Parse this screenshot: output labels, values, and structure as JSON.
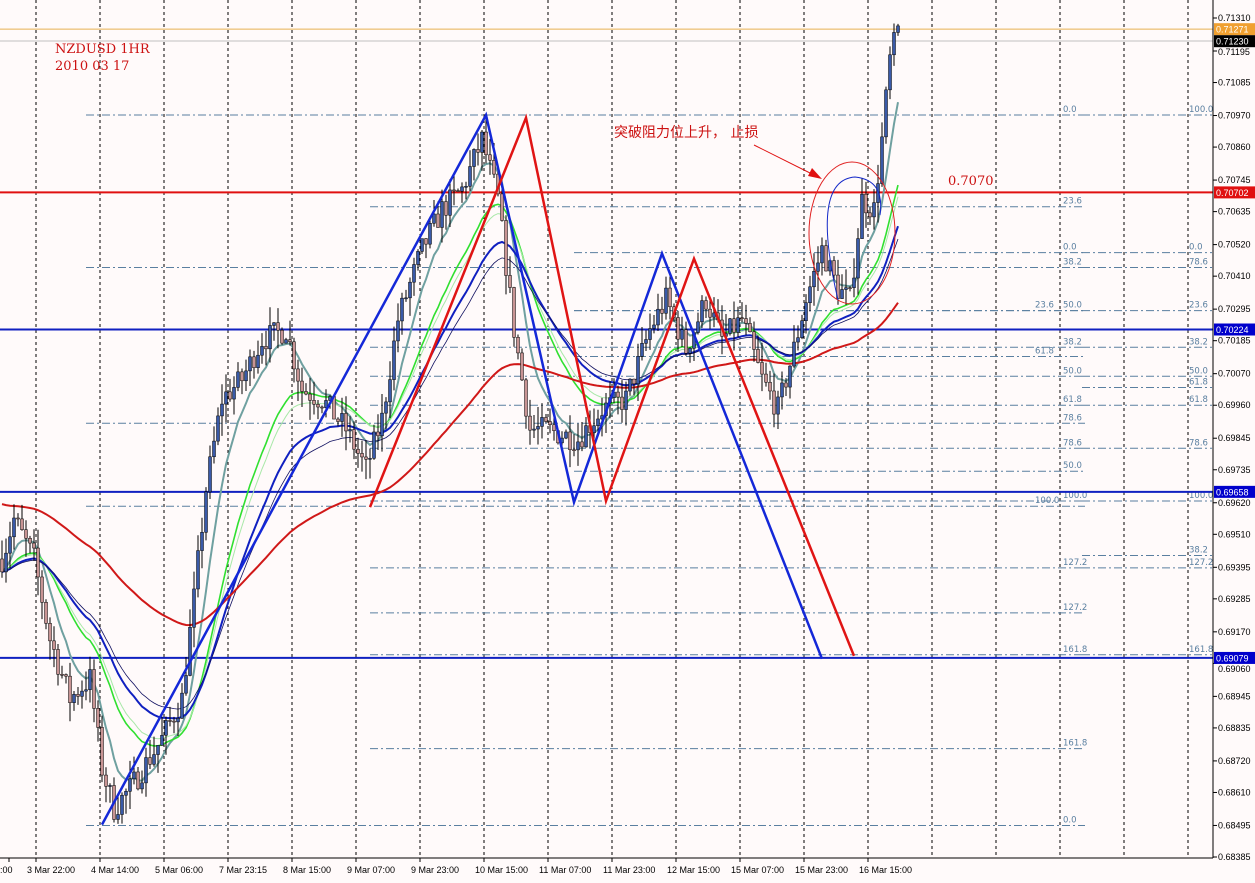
{
  "chart_data": {
    "type": "candlestick",
    "title": "NZDUSD 1HR",
    "subtitle": "2010 03 17",
    "annotation": "突破阻力位上升， 止损",
    "level_label": "0.7070",
    "price_axis": {
      "ylim": [
        0.68385,
        0.7131
      ],
      "ticks": [
        "0.71310",
        "0.71195",
        "0.71085",
        "0.70970",
        "0.70860",
        "0.70745",
        "0.70635",
        "0.70520",
        "0.70410",
        "0.70295",
        "0.70185",
        "0.70070",
        "0.69960",
        "0.69845",
        "0.69735",
        "0.69620",
        "0.69510",
        "0.69395",
        "0.69285",
        "0.69170",
        "0.69060",
        "0.68945",
        "0.68835",
        "0.68720",
        "0.68610",
        "0.68495",
        "0.68385"
      ]
    },
    "time_axis": {
      "ticks": [
        ":00",
        "3 Mar 22:00",
        "4 Mar 14:00",
        "5 Mar 06:00",
        "7 Mar 23:15",
        "8 Mar 15:00",
        "9 Mar 07:00",
        "9 Mar 23:00",
        "10 Mar 15:00",
        "11 Mar 07:00",
        "11 Mar 23:00",
        "12 Mar 15:00",
        "15 Mar 07:00",
        "15 Mar 23:00",
        "16 Mar 15:00"
      ]
    },
    "grid": true,
    "price_markers": [
      {
        "label": "0.71271",
        "price": 0.71271,
        "color": "#f0a030",
        "line": "#e8b050"
      },
      {
        "label": "0.71230",
        "price": 0.7123,
        "color": "#000000",
        "line": "#c0c0c0"
      },
      {
        "label": "0.70702",
        "price": 0.70702,
        "color": "#e01010",
        "line": "#e01010"
      },
      {
        "label": "0.70224",
        "price": 0.70224,
        "color": "#0000cc",
        "line": "#1020c0"
      },
      {
        "label": "0.69658",
        "price": 0.69658,
        "color": "#0000cc",
        "line": "#1020c0"
      },
      {
        "label": "0.69079",
        "price": 0.69079,
        "color": "#0000cc",
        "line": "#1020c0"
      }
    ],
    "close_path": [
      [
        0,
        0.69424
      ],
      [
        3,
        0.69563
      ],
      [
        8,
        0.69424
      ],
      [
        12,
        0.69145
      ],
      [
        17,
        0.68937
      ],
      [
        22,
        0.69006
      ],
      [
        25,
        0.68693
      ],
      [
        28,
        0.68554
      ],
      [
        32,
        0.68623
      ],
      [
        40,
        0.68797
      ],
      [
        45,
        0.68937
      ],
      [
        48,
        0.69285
      ],
      [
        51,
        0.69667
      ],
      [
        55,
        0.69981
      ],
      [
        60,
        0.7005
      ],
      [
        65,
        0.70189
      ],
      [
        71,
        0.70224
      ],
      [
        75,
        0.70015
      ],
      [
        80,
        0.69981
      ],
      [
        86,
        0.69876
      ],
      [
        91,
        0.69737
      ],
      [
        95,
        0.69911
      ],
      [
        99,
        0.70259
      ],
      [
        105,
        0.70503
      ],
      [
        110,
        0.70642
      ],
      [
        115,
        0.70711
      ],
      [
        120,
        0.70885
      ],
      [
        124,
        0.70677
      ],
      [
        128,
        0.70224
      ],
      [
        132,
        0.69876
      ],
      [
        136,
        0.69876
      ],
      [
        144,
        0.69841
      ],
      [
        150,
        0.69946
      ],
      [
        156,
        0.69981
      ],
      [
        162,
        0.70224
      ],
      [
        166,
        0.70329
      ],
      [
        171,
        0.70155
      ],
      [
        176,
        0.70329
      ],
      [
        180,
        0.70189
      ],
      [
        185,
        0.70259
      ],
      [
        190,
        0.7005
      ],
      [
        194,
        0.69946
      ],
      [
        198,
        0.70155
      ],
      [
        201,
        0.70329
      ],
      [
        205,
        0.70503
      ],
      [
        209,
        0.70364
      ],
      [
        212,
        0.70329
      ],
      [
        215,
        0.70677
      ],
      [
        218,
        0.70642
      ],
      [
        220,
        0.70885
      ],
      [
        222,
        0.71164
      ],
      [
        224,
        0.71268
      ]
    ],
    "moving_averages": [
      {
        "period": 8,
        "color": "#6fa0a0",
        "width": 2
      },
      {
        "period": 21,
        "color": "#30e030",
        "width": 1.6
      },
      {
        "period": 24,
        "color": "#a8e8a8",
        "width": 1
      },
      {
        "period": 34,
        "color": "#1020c0",
        "width": 2
      },
      {
        "period": 40,
        "color": "#101060",
        "width": 0.8
      },
      {
        "period": 100,
        "color": "#d01818",
        "width": 2,
        "start": 0.6962
      }
    ],
    "zigzags": [
      {
        "color": "#1428d8",
        "points": [
          [
            25,
            0.68498
          ],
          [
            121,
            0.70972
          ],
          [
            143,
            0.69622
          ],
          [
            165,
            0.70489
          ],
          [
            205,
            0.69076
          ]
        ]
      },
      {
        "color": "#e01414",
        "points": [
          [
            92,
            0.69605
          ],
          [
            131,
            0.70962
          ],
          [
            151,
            0.69626
          ],
          [
            173,
            0.70471
          ],
          [
            213,
            0.69086
          ]
        ]
      }
    ],
    "fib_levels_left": [
      {
        "label": "0.0",
        "price": 0.70972,
        "from": 21
      },
      {
        "label": "23.6",
        "price": 0.70652,
        "from": 92
      },
      {
        "label": "0.0",
        "price": 0.70492,
        "from": 143
      },
      {
        "label": "38.2",
        "price": 0.7044,
        "from": 21
      },
      {
        "label": "50.0",
        "price": 0.7029,
        "from": 143
      },
      {
        "label": "23.6",
        "price": 0.7029,
        "from": 143
      },
      {
        "label": "38.2",
        "price": 0.70162,
        "from": 92
      },
      {
        "label": "61.8",
        "price": 0.7013,
        "from": 143
      },
      {
        "label": "50.0",
        "price": 0.70061,
        "from": 92
      },
      {
        "label": "61.8",
        "price": 0.6996,
        "from": 92
      },
      {
        "label": "78.6",
        "price": 0.69897,
        "from": 21
      },
      {
        "label": "78.6",
        "price": 0.6981,
        "from": 92
      },
      {
        "label": "50.0",
        "price": 0.6973,
        "from": 143
      },
      {
        "label": "100.0",
        "price": 0.69626,
        "from": 92
      },
      {
        "label": "100.0",
        "price": 0.69608,
        "from": 21
      },
      {
        "label": "127.2",
        "price": 0.69393,
        "from": 92
      },
      {
        "label": "127.2",
        "price": 0.69236,
        "from": 92
      },
      {
        "label": "161.8",
        "price": 0.6909,
        "from": 92
      },
      {
        "label": "161.8",
        "price": 0.68763,
        "from": 92
      },
      {
        "label": "0.0",
        "price": 0.68495,
        "from": 21
      }
    ],
    "fib_levels_right": [
      {
        "label": "100.0",
        "price": 0.70972,
        "from": 270
      },
      {
        "label": "0.0",
        "price": 0.70492,
        "from": 270
      },
      {
        "label": "78.6",
        "price": 0.7044,
        "from": 270
      },
      {
        "label": "23.6",
        "price": 0.7029,
        "from": 270
      },
      {
        "label": "38.2",
        "price": 0.70162,
        "from": 270
      },
      {
        "label": "50.0",
        "price": 0.70061,
        "from": 270
      },
      {
        "label": "61.8",
        "price": 0.70022,
        "from": 270
      },
      {
        "label": "61.8",
        "price": 0.6996,
        "from": 270
      },
      {
        "label": "78.6",
        "price": 0.6981,
        "from": 270
      },
      {
        "label": "100.0",
        "price": 0.69626,
        "from": 270
      },
      {
        "label": "38.2",
        "price": 0.69436,
        "from": 270
      },
      {
        "label": "127.2",
        "price": 0.69393,
        "from": 270
      },
      {
        "label": "161.8",
        "price": 0.6909,
        "from": 270
      }
    ],
    "candle_colors": {
      "bull": "#3a5aa8",
      "bear": "#c89494",
      "wick": "#000000"
    }
  }
}
